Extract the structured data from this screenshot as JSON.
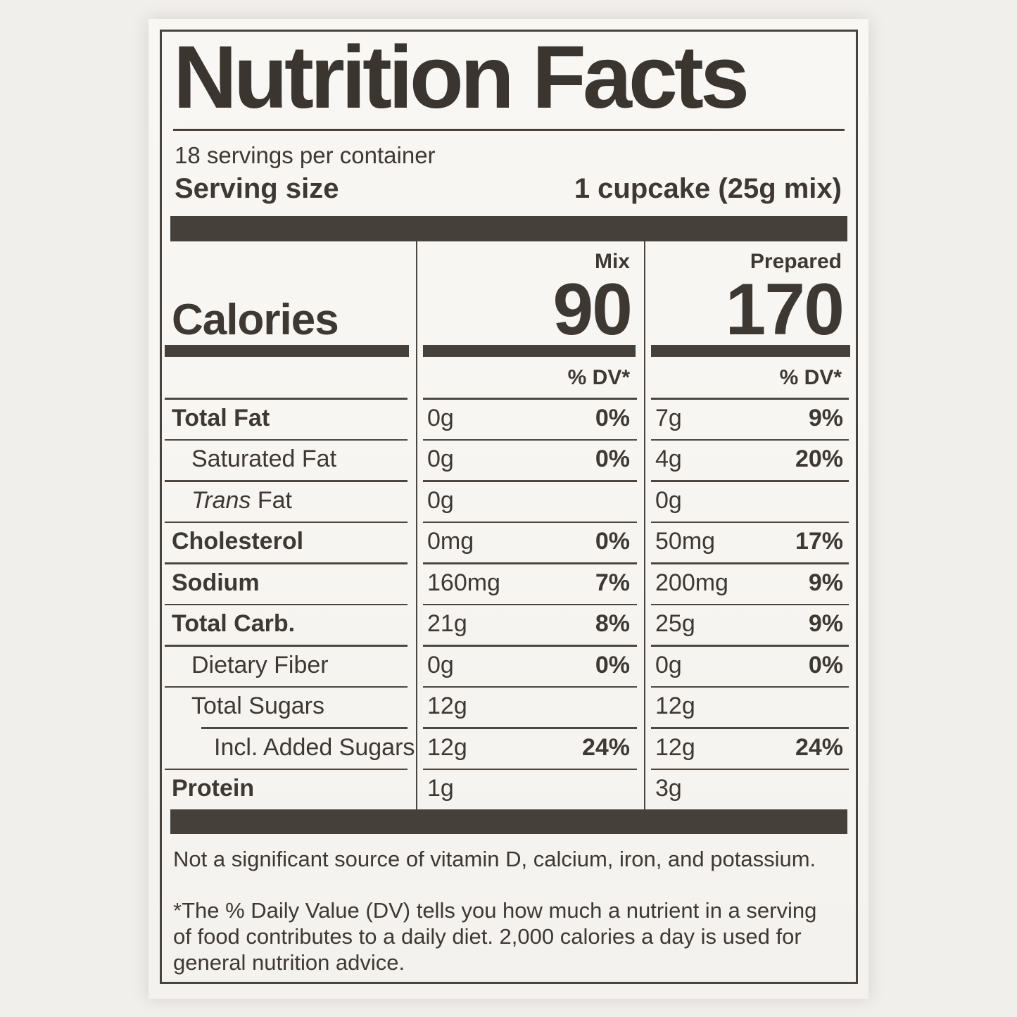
{
  "colors": {
    "ink": "#3e3833",
    "bar": "#46403a",
    "paper": "#f8f6f2",
    "page_background": "#f1efec"
  },
  "label": {
    "title": "Nutrition Facts",
    "servings_per_container": "18 servings per container",
    "serving_size_label": "Serving size",
    "serving_size_value": "1 cupcake (25g mix)",
    "calories_label": "Calories",
    "columns": [
      {
        "name": "Mix",
        "calories": "90",
        "dv_header": "% DV*"
      },
      {
        "name": "Prepared",
        "calories": "170",
        "dv_header": "% DV*"
      }
    ],
    "nutrients": [
      {
        "label": "Total Fat",
        "bold": true,
        "indent": 0,
        "mix": {
          "amount": "0g",
          "dv": "0%"
        },
        "prepared": {
          "amount": "7g",
          "dv": "9%"
        }
      },
      {
        "label": "Saturated Fat",
        "bold": false,
        "indent": 1,
        "mix": {
          "amount": "0g",
          "dv": "0%"
        },
        "prepared": {
          "amount": "4g",
          "dv": "20%"
        }
      },
      {
        "label": "Trans Fat",
        "bold": false,
        "indent": 1,
        "italic_word": "Trans",
        "mix": {
          "amount": "0g",
          "dv": ""
        },
        "prepared": {
          "amount": "0g",
          "dv": ""
        }
      },
      {
        "label": "Cholesterol",
        "bold": true,
        "indent": 0,
        "mix": {
          "amount": "0mg",
          "dv": "0%"
        },
        "prepared": {
          "amount": "50mg",
          "dv": "17%"
        }
      },
      {
        "label": "Sodium",
        "bold": true,
        "indent": 0,
        "mix": {
          "amount": "160mg",
          "dv": "7%"
        },
        "prepared": {
          "amount": "200mg",
          "dv": "9%"
        }
      },
      {
        "label": "Total Carb.",
        "bold": true,
        "indent": 0,
        "mix": {
          "amount": "21g",
          "dv": "8%"
        },
        "prepared": {
          "amount": "25g",
          "dv": "9%"
        }
      },
      {
        "label": "Dietary Fiber",
        "bold": false,
        "indent": 1,
        "mix": {
          "amount": "0g",
          "dv": "0%"
        },
        "prepared": {
          "amount": "0g",
          "dv": "0%"
        }
      },
      {
        "label": "Total Sugars",
        "bold": false,
        "indent": 1,
        "mix": {
          "amount": "12g",
          "dv": ""
        },
        "prepared": {
          "amount": "12g",
          "dv": ""
        }
      },
      {
        "label": "Incl. Added Sugars",
        "bold": false,
        "indent": 2,
        "rule_indent": true,
        "mix": {
          "amount": "12g",
          "dv": "24%"
        },
        "prepared": {
          "amount": "12g",
          "dv": "24%"
        }
      },
      {
        "label": "Protein",
        "bold": true,
        "indent": 0,
        "mix": {
          "amount": "1g",
          "dv": ""
        },
        "prepared": {
          "amount": "3g",
          "dv": ""
        }
      }
    ],
    "not_significant": "Not a significant source of vitamin D, calcium, iron, and potassium.",
    "footnote": "*The % Daily Value (DV) tells you how much a nutrient in a serving of food contributes to a daily diet. 2,000 calories a day is used for general nutrition advice."
  }
}
